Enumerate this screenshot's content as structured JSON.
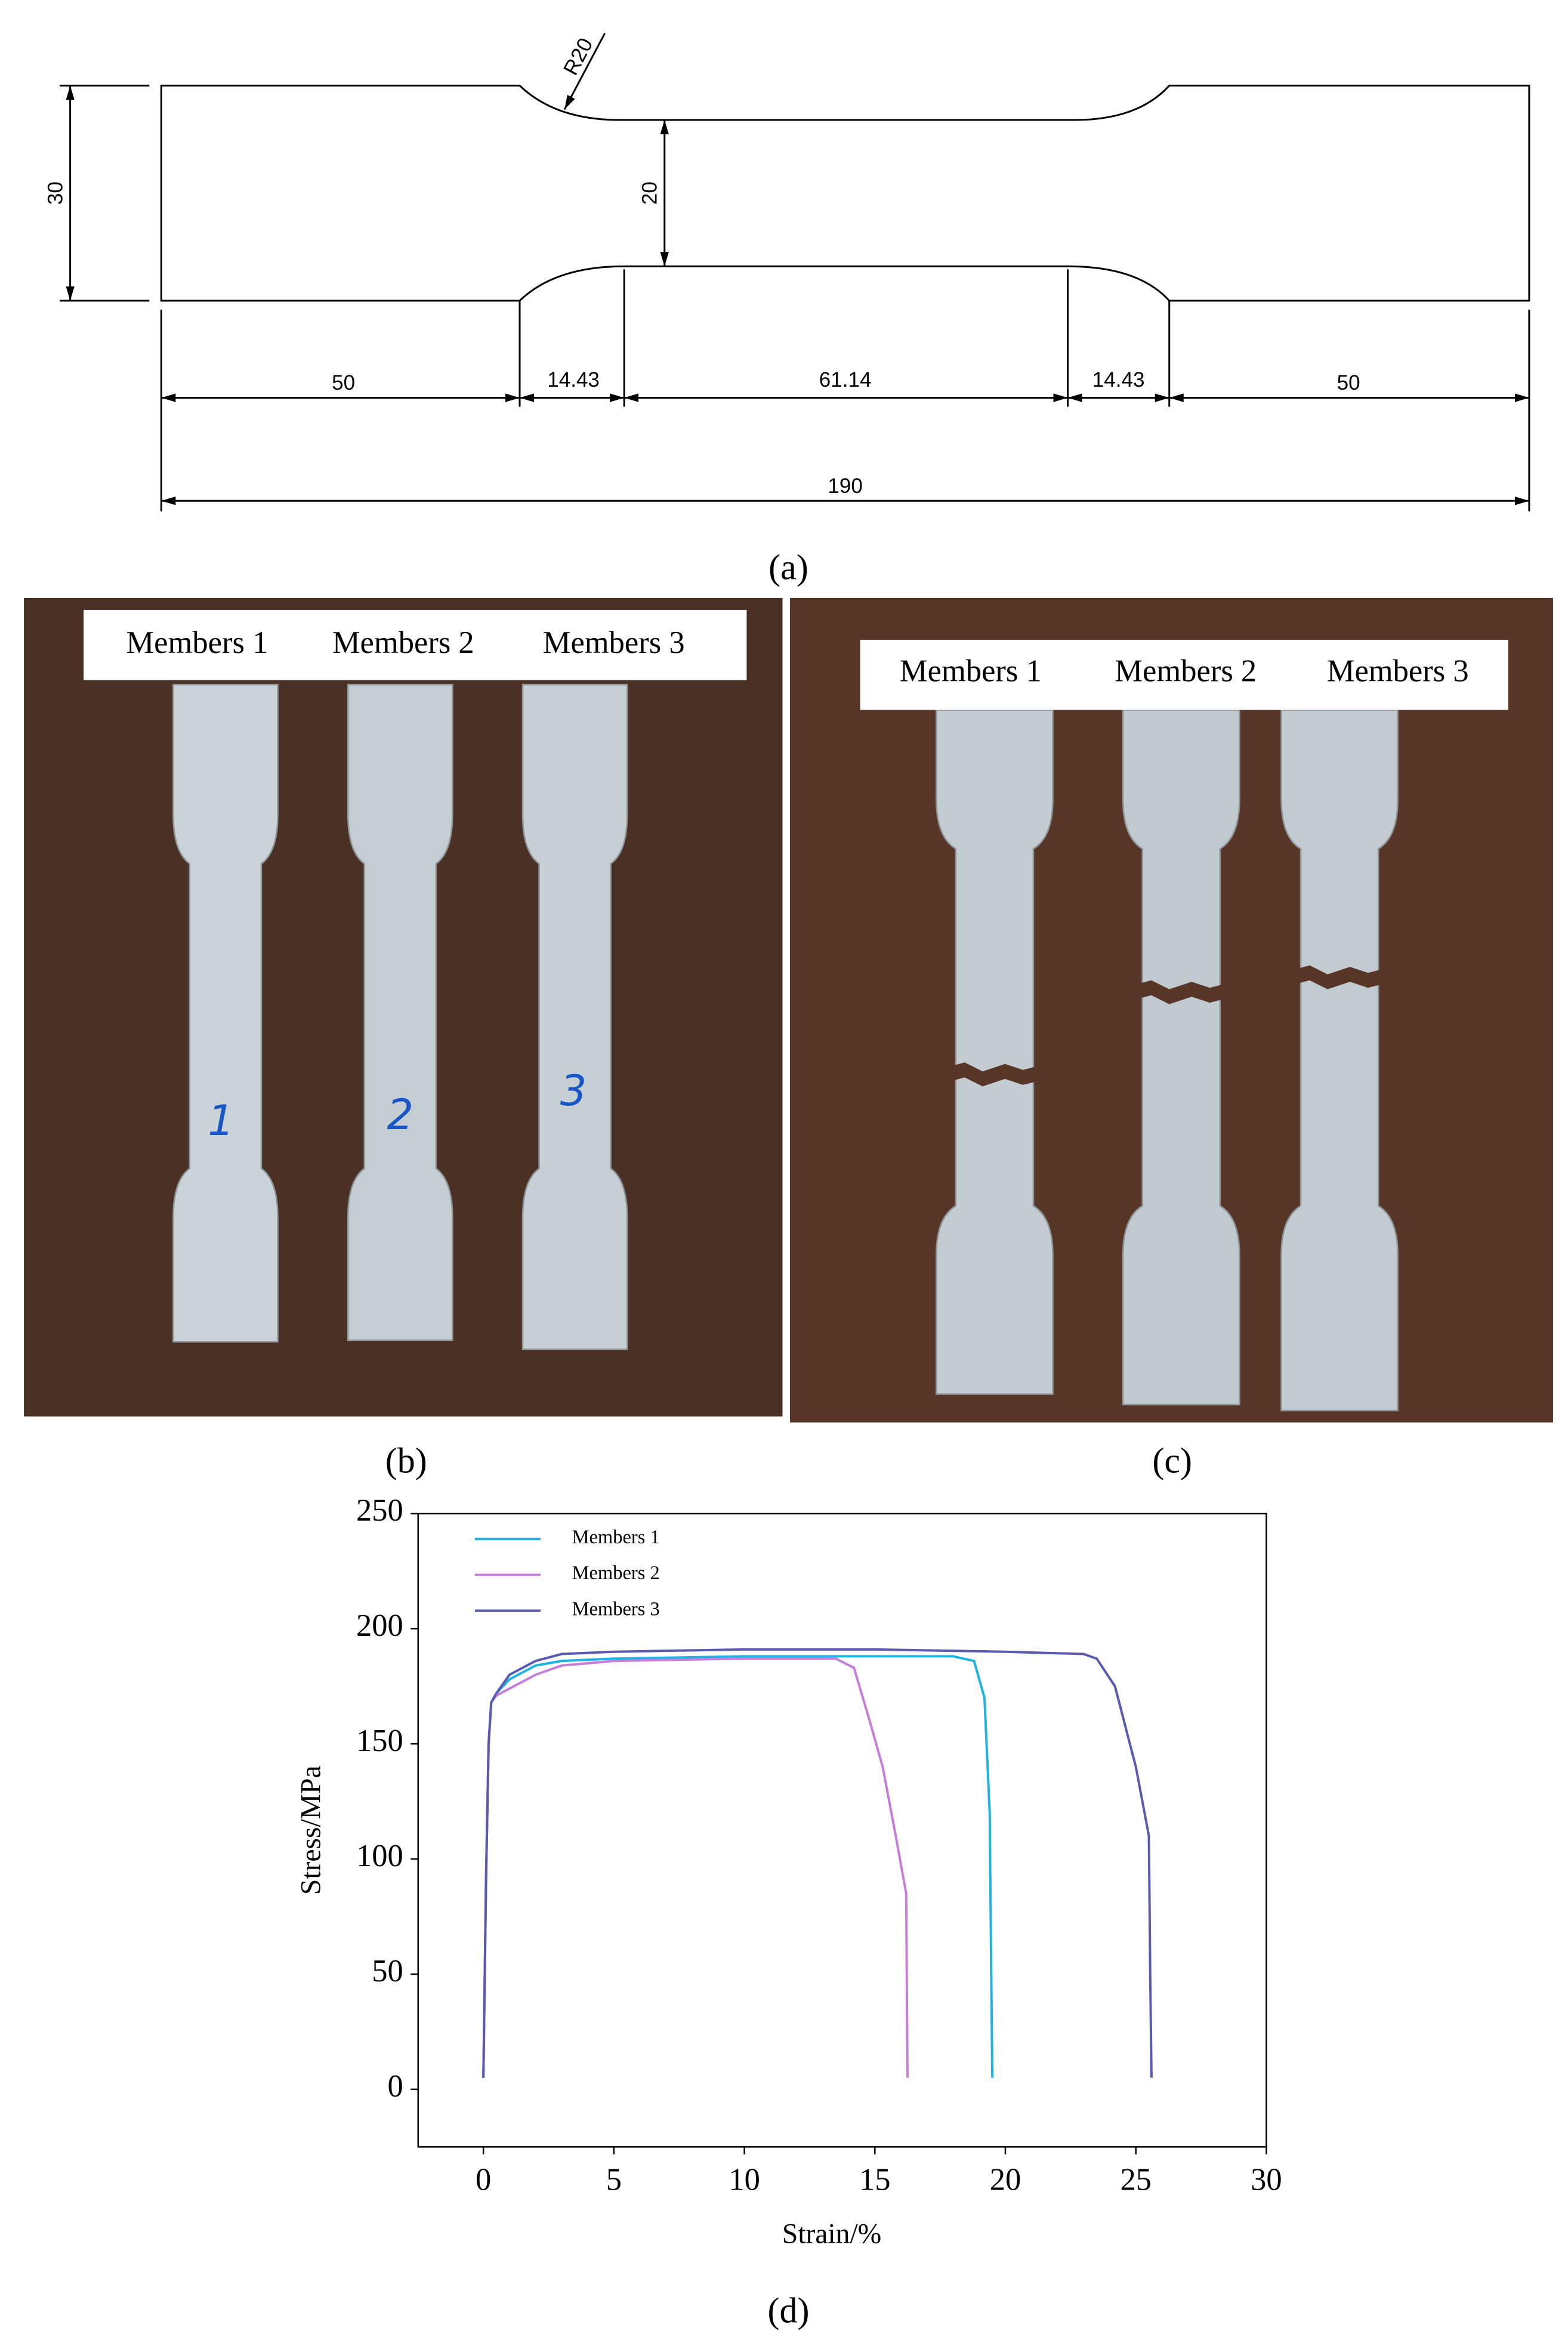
{
  "panel_labels": [
    "(a)",
    "(b)",
    "(c)",
    "(d)"
  ],
  "drawing": {
    "radius": "R20",
    "width_total": "30",
    "width_neck": "20",
    "lengths": [
      "50",
      "14.43",
      "61.14",
      "14.43",
      "50"
    ],
    "length_total": "190"
  },
  "photo_b": {
    "labels": [
      "Members 1",
      "Members 2",
      "Members 3"
    ],
    "handwritten": [
      "1",
      "2",
      "3"
    ]
  },
  "photo_c": {
    "labels": [
      "Members 1",
      "Members 2",
      "Members 3"
    ]
  },
  "chart_data": {
    "type": "line",
    "x_label": "Strain/%",
    "y_label": "Stress/MPa",
    "xlim": [
      -2.5,
      30
    ],
    "ylim": [
      -25,
      250
    ],
    "xticks": [
      0,
      5,
      10,
      15,
      20,
      25,
      30
    ],
    "yticks": [
      0,
      50,
      100,
      150,
      200,
      250
    ],
    "legend": "top-left",
    "series": [
      {
        "name": "Members 1",
        "color": "#1fb3e5",
        "x": [
          0,
          0.1,
          0.2,
          0.3,
          0.5,
          1,
          2,
          3,
          5,
          10,
          15,
          18,
          18.8,
          19.2,
          19.4,
          19.45,
          19.5
        ],
        "values": [
          5,
          90,
          150,
          168,
          172,
          178,
          184,
          186,
          187,
          188,
          188,
          188,
          186,
          170,
          120,
          60,
          5
        ]
      },
      {
        "name": "Members 2",
        "color": "#c77ddb",
        "x": [
          0,
          0.1,
          0.2,
          0.3,
          0.5,
          1,
          2,
          3,
          5,
          10,
          13.5,
          14.2,
          14.8,
          15.3,
          15.8,
          16.2,
          16.25
        ],
        "values": [
          5,
          90,
          150,
          168,
          171,
          174,
          180,
          184,
          186,
          187,
          187,
          183,
          160,
          140,
          110,
          85,
          5
        ]
      },
      {
        "name": "Members 3",
        "color": "#5a5ab0",
        "x": [
          0,
          0.1,
          0.2,
          0.3,
          0.5,
          1,
          2,
          3,
          5,
          10,
          15,
          20,
          23,
          23.5,
          24.2,
          25,
          25.5,
          25.55,
          25.6
        ],
        "values": [
          5,
          90,
          150,
          168,
          172,
          180,
          186,
          189,
          190,
          191,
          191,
          190,
          189,
          187,
          175,
          140,
          110,
          50,
          5
        ]
      }
    ]
  }
}
